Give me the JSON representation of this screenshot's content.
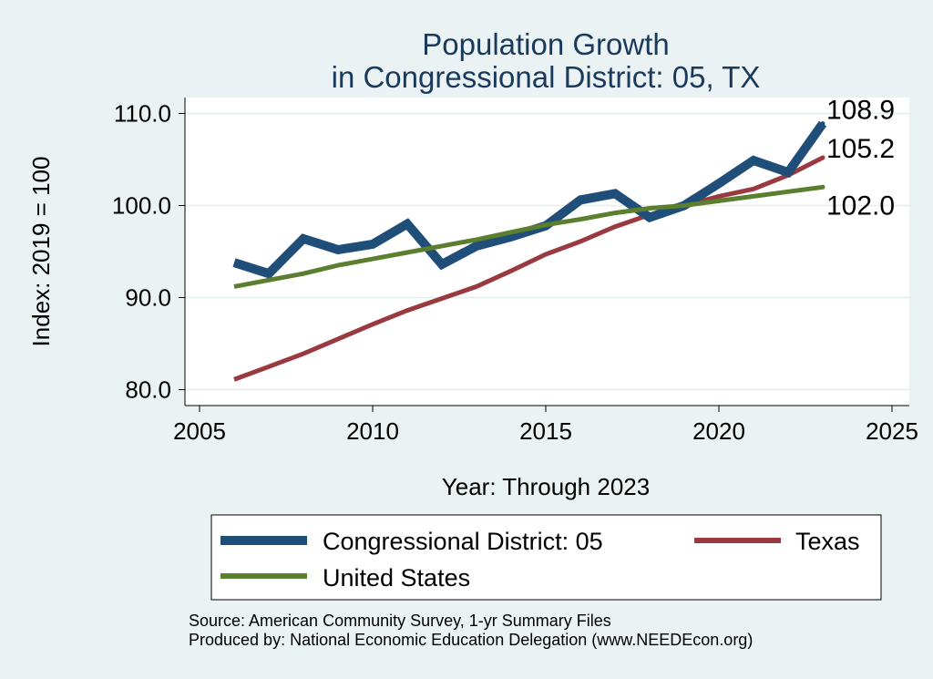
{
  "chart_data": {
    "type": "line",
    "title": [
      "Population Growth",
      "in Congressional District: 05, TX"
    ],
    "xlabel": "Year: Through 2023",
    "ylabel": "Index: 2019 = 100",
    "xlim": [
      2005,
      2025
    ],
    "ylim": [
      79,
      110.5
    ],
    "x_ticks": [
      2005,
      2010,
      2015,
      2020,
      2025
    ],
    "y_ticks": [
      80,
      90,
      100,
      110
    ],
    "y_tick_labels": [
      "80.0",
      "90.0",
      "100.0",
      "110.0"
    ],
    "grid": true,
    "legend_position": "bottom",
    "x": [
      2006,
      2007,
      2008,
      2009,
      2010,
      2011,
      2012,
      2013,
      2014,
      2015,
      2016,
      2017,
      2018,
      2019,
      2020,
      2021,
      2022,
      2023
    ],
    "series": [
      {
        "name": "Congressional District: 05",
        "color": "#1f4e79",
        "values": [
          93.8,
          92.6,
          96.4,
          95.2,
          95.8,
          98.0,
          93.6,
          95.6,
          96.6,
          97.8,
          100.6,
          101.3,
          98.7,
          100.0,
          102.4,
          104.9,
          103.6,
          108.9
        ],
        "end_label": "108.9"
      },
      {
        "name": "Texas",
        "color": "#983a3f",
        "values": [
          81.1,
          82.5,
          83.9,
          85.5,
          87.1,
          88.6,
          89.9,
          91.2,
          92.9,
          94.7,
          96.1,
          97.7,
          99.0,
          100.0,
          101.0,
          101.8,
          103.3,
          105.2
        ],
        "end_label": "105.2"
      },
      {
        "name": "United States",
        "color": "#5b7f2e",
        "values": [
          91.2,
          91.9,
          92.6,
          93.5,
          94.2,
          94.9,
          95.6,
          96.3,
          97.1,
          97.9,
          98.5,
          99.2,
          99.7,
          100.0,
          100.5,
          101.0,
          101.5,
          102.0
        ],
        "end_label": "102.0"
      }
    ],
    "source_note": [
      "Source: American Community Survey, 1-yr Summary Files",
      "Produced by: National Economic Education Delegation (www.NEEDEcon.org)"
    ]
  }
}
